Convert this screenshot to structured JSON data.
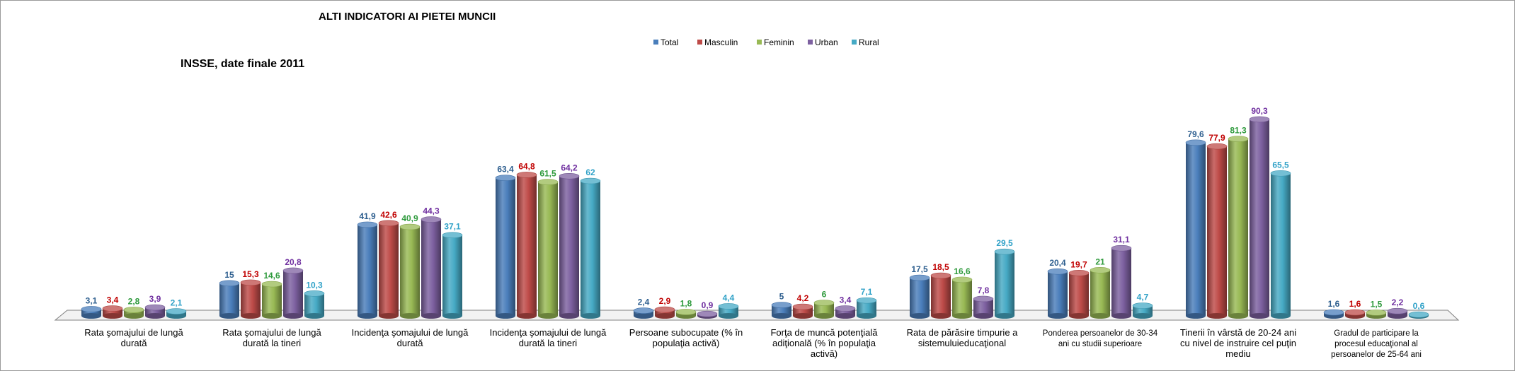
{
  "chart_data": {
    "type": "bar",
    "title": "ALTI INDICATORI AI PIETEI MUNCII",
    "subtitle": "INSSE, date finale 2011",
    "legend_position": "top-center",
    "grid": false,
    "style": "3d-cylinder",
    "categories": [
      [
        "Rata şomajului de lungă",
        "durată"
      ],
      [
        "Rata şomajului de lungă",
        "durată la tineri"
      ],
      [
        "Incidenţa şomajului de lungă",
        "durată"
      ],
      [
        "Incidenţa şomajului de lungă",
        "durată la tineri"
      ],
      [
        "Persoane subocupate (% în",
        "populaţia activă)"
      ],
      [
        "Forţa de muncă potenţială",
        "adiţională (% în populaţia",
        "activă)"
      ],
      [
        "Rata de părăsire timpurie a",
        "sistemuluieducaţional"
      ],
      [
        "Ponderea persoanelor de 30-34",
        "ani cu studii superioare"
      ],
      [
        "Tinerii în vârstă de 20-24 ani",
        "cu nivel de instruire cel puţin",
        "mediu"
      ],
      [
        "Gradul de participare la",
        "procesul educaţional al",
        "persoanelor de 25-64 ani"
      ]
    ],
    "series": [
      {
        "name": "Total",
        "color": "#4a7ebb",
        "values": [
          3.1,
          15,
          41.9,
          63.4,
          2.4,
          5,
          17.5,
          20.4,
          79.6,
          1.6
        ],
        "labels": [
          "3,1",
          "15",
          "41,9",
          "63,4",
          "2,4",
          "5",
          "17,5",
          "20,4",
          "79,6",
          "1,6"
        ],
        "label_color": "#2e5f8f"
      },
      {
        "name": "Masculin",
        "color": "#be4b48",
        "values": [
          3.4,
          15.3,
          42.6,
          64.8,
          2.9,
          4.2,
          18.5,
          19.7,
          77.9,
          1.6
        ],
        "labels": [
          "3,4",
          "15,3",
          "42,6",
          "64,8",
          "2,9",
          "4,2",
          "18,5",
          "19,7",
          "77,9",
          "1,6"
        ],
        "label_color": "#c00000"
      },
      {
        "name": "Feminin",
        "color": "#98b954",
        "values": [
          2.8,
          14.6,
          40.9,
          61.5,
          1.8,
          6,
          16.6,
          21,
          81.3,
          1.5
        ],
        "labels": [
          "2,8",
          "14,6",
          "40,9",
          "61,5",
          "1,8",
          "6",
          "16,6",
          "21",
          "81,3",
          "1,5"
        ],
        "label_color": "#2e9a3c"
      },
      {
        "name": "Urban",
        "color": "#7d60a0",
        "values": [
          3.9,
          20.8,
          44.3,
          64.2,
          0.9,
          3.4,
          7.8,
          31.1,
          90.3,
          2.2
        ],
        "labels": [
          "3,9",
          "20,8",
          "44,3",
          "64,2",
          "0,9",
          "3,4",
          "7,8",
          "31,1",
          "90,3",
          "2,2"
        ],
        "label_color": "#7030a0"
      },
      {
        "name": "Rural",
        "color": "#46aac5",
        "values": [
          2.1,
          10.3,
          37.1,
          62,
          4.4,
          7.1,
          29.5,
          4.7,
          65.5,
          0.6
        ],
        "labels": [
          "2,1",
          "10,3",
          "37,1",
          "62",
          "4,4",
          "7,1",
          "29,5",
          "4,7",
          "65,5",
          "0,6"
        ],
        "label_color": "#31a2c8"
      }
    ],
    "ylim": [
      0,
      100
    ]
  }
}
